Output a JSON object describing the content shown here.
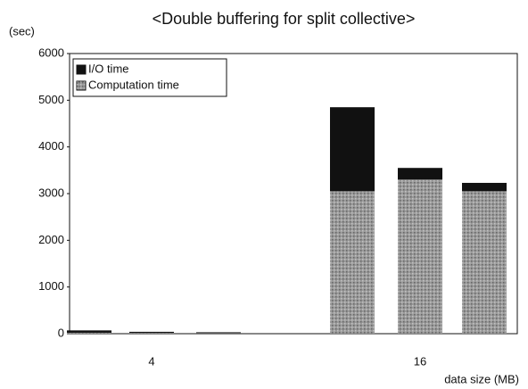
{
  "chart_data": {
    "type": "stacked_bar",
    "title": "<Double buffering for split collective>",
    "y_label": "(sec)",
    "x_label": "data size (MB)",
    "categories": [
      null,
      "4",
      null,
      null,
      "16",
      null
    ],
    "series": [
      {
        "name": "Computation time",
        "color": "#9a9a9a",
        "values": [
          20,
          15,
          10,
          3050,
          3300,
          3050
        ]
      },
      {
        "name": "I/O time",
        "color": "#111111",
        "values": [
          50,
          25,
          20,
          1800,
          250,
          180
        ]
      }
    ],
    "ylim": [
      0,
      6000
    ],
    "yticks": [
      0,
      1000,
      2000,
      3000,
      4000,
      5000,
      6000
    ],
    "grid": false,
    "legend": "top-left"
  }
}
